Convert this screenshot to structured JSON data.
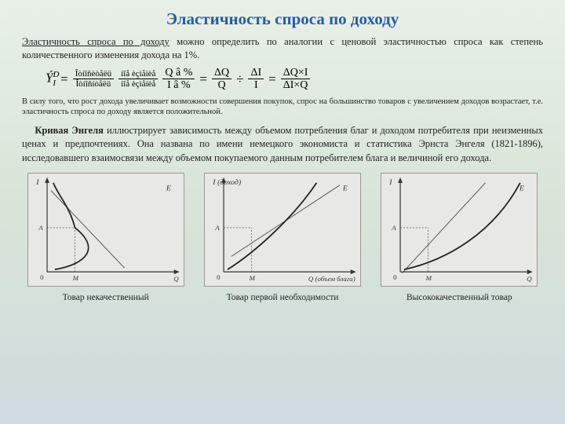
{
  "title": "Эластичность спроса по доходу",
  "intro": {
    "underlined": "Эластичность спроса по доходу",
    "rest": " можно определить по аналогии с ценовой эластичностью спроса как степень количественного изменения дохода на 1%."
  },
  "formula": {
    "lhs_top": "Ý",
    "lhs_sup": "D",
    "lhs_sub": "I",
    "frac1_num": "Îòíîñèòåëü",
    "frac1_den": "Îòíîñíòåëü",
    "frac2_num": "íîå èçìåíèå",
    "frac2_den": "íîå èçìåíèå",
    "frac3_num": "Q â %",
    "frac3_den": "I â %",
    "frac4_num": "ΔQ",
    "frac4_den": "Q",
    "divide": "÷",
    "frac5_num": "ΔI",
    "frac5_den": "I",
    "frac6_num": "ΔQ×I",
    "frac6_den": "ΔI×Q"
  },
  "small_note": "В силу того, что рост дохода увеличивает возможности совершения покупок, спрос на большинство товаров с увеличением доходов возрастает, т.е. эластичность спроса по доходу является положительной.",
  "engel": {
    "bold": "Кривая Энгеля",
    "text": " иллюстрирует зависимость между объемом потребления благ и доходом потребителя при неизменных ценах и предпочтениях. Она названа по имени немецкого экономиста и статистика Эрнста Энгеля (1821-1896), исследовавшего взаимосвязи между объемом покупаемого данным потребителем блага и величиной его дохода."
  },
  "charts": [
    {
      "caption": "Товар некачественный",
      "y_label": "I",
      "x_label": "Q",
      "marks": {
        "y": "A",
        "x": "M"
      },
      "curve": "inferior",
      "colors": {
        "bg": "#e8e8e4",
        "axis": "#333",
        "curve": "#222",
        "line": "#555"
      }
    },
    {
      "caption": "Товар первой необходимости",
      "y_label": "I (доход)",
      "x_label": "Q (объем блага)",
      "marks": {
        "y": "A",
        "x": "M"
      },
      "curve": "necessity",
      "colors": {
        "bg": "#e8e8e4",
        "axis": "#333",
        "curve": "#222",
        "line": "#555"
      }
    },
    {
      "caption": "Высококачественный товар",
      "y_label": "I",
      "x_label": "Q",
      "marks": {
        "y": "A",
        "x": "M"
      },
      "curve": "luxury",
      "colors": {
        "bg": "#e8e8e4",
        "axis": "#333",
        "curve": "#222",
        "line": "#555"
      }
    }
  ]
}
